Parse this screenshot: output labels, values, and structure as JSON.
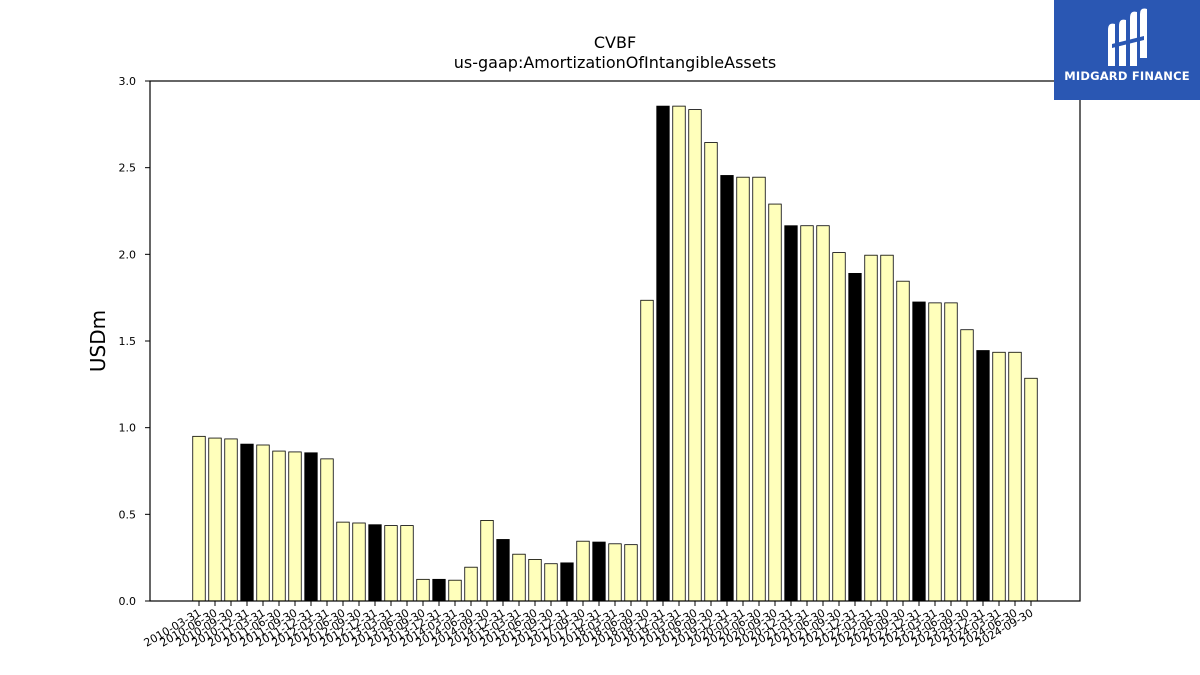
{
  "chart_data": {
    "type": "bar",
    "title": "CVBF",
    "subtitle": "us-gaap:AmortizationOfIntangibleAssets",
    "ylabel": "USDm",
    "xlabel": "",
    "ylim": [
      0,
      3.0
    ],
    "yticks": [
      "0.0",
      "0.5",
      "1.0",
      "1.5",
      "2.0",
      "2.5",
      "3.0"
    ],
    "bar_colors": {
      "default": "#ffffbb",
      "q4": "#000000",
      "edge": "#000000"
    },
    "categories": [
      "2010-03-31",
      "2010-06-30",
      "2010-09-30",
      "2010-12-31",
      "2011-03-31",
      "2011-06-30",
      "2011-09-30",
      "2011-12-31",
      "2012-03-31",
      "2012-06-30",
      "2012-09-30",
      "2012-12-31",
      "2013-03-31",
      "2013-06-30",
      "2013-09-30",
      "2013-12-31",
      "2014-03-31",
      "2014-06-30",
      "2014-09-30",
      "2014-12-31",
      "2015-03-31",
      "2015-06-30",
      "2015-09-30",
      "2015-12-31",
      "2017-09-30",
      "2017-12-31",
      "2018-03-31",
      "2018-06-30",
      "2018-09-30",
      "2018-12-31",
      "2019-03-31",
      "2019-06-30",
      "2019-09-30",
      "2019-12-31",
      "2020-03-31",
      "2020-06-30",
      "2020-09-30",
      "2020-12-31",
      "2021-03-31",
      "2021-06-30",
      "2021-09-30",
      "2021-12-31",
      "2022-03-31",
      "2022-06-30",
      "2022-09-30",
      "2022-12-31",
      "2023-03-31",
      "2023-06-30",
      "2023-09-30",
      "2023-12-31",
      "2024-03-31",
      "2024-06-30",
      "2024-09-30"
    ],
    "values": [
      0.95,
      0.94,
      0.935,
      0.905,
      0.9,
      0.865,
      0.86,
      0.855,
      0.82,
      0.455,
      0.45,
      0.44,
      0.435,
      0.435,
      0.125,
      0.125,
      0.12,
      0.195,
      0.465,
      0.355,
      0.27,
      0.24,
      0.215,
      0.22,
      0.345,
      0.34,
      0.33,
      0.325,
      1.735,
      2.855,
      2.855,
      2.835,
      2.645,
      2.455,
      2.445,
      2.445,
      2.29,
      2.165,
      2.165,
      2.165,
      2.01,
      1.89,
      1.995,
      1.995,
      1.845,
      1.725,
      1.72,
      1.72,
      1.565,
      1.445,
      1.435,
      1.435,
      1.285
    ],
    "highlight": [
      false,
      false,
      false,
      true,
      false,
      false,
      false,
      true,
      false,
      false,
      false,
      true,
      false,
      false,
      false,
      true,
      false,
      false,
      false,
      true,
      false,
      false,
      false,
      true,
      false,
      true,
      false,
      false,
      false,
      true,
      false,
      false,
      false,
      true,
      false,
      false,
      false,
      true,
      false,
      false,
      false,
      true,
      false,
      false,
      false,
      true,
      false,
      false,
      false,
      true,
      false,
      false,
      false
    ],
    "grid": false,
    "legend": "none"
  },
  "logo": {
    "text": "MIDGARD FINANCE",
    "icon": "midgard-logo-icon"
  }
}
